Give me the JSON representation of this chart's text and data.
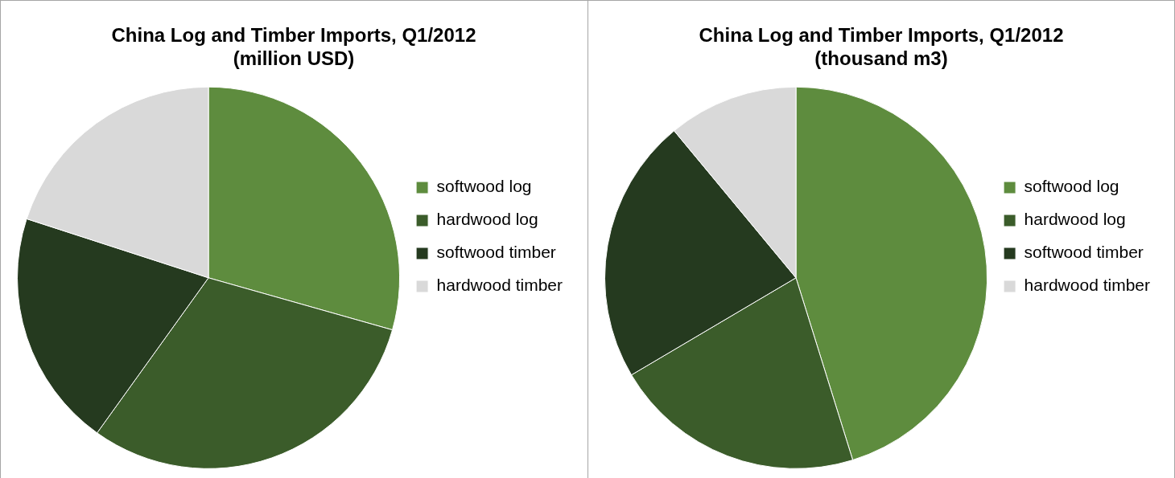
{
  "chart_data": [
    {
      "type": "pie",
      "title": "China Log and Timber Imports, Q1/2012\n(million USD)",
      "categories": [
        "softwood log",
        "hardwood log",
        "softwood timber",
        "hardwood timber"
      ],
      "values": [
        29.4,
        30.5,
        20.1,
        20.0
      ],
      "colors": [
        "#5e8c3e",
        "#3b5c2a",
        "#253a1f",
        "#d9d9d9"
      ],
      "legend": "right"
    },
    {
      "type": "pie",
      "title": "China Log and Timber Imports, Q1/2012\n(thousand m3)",
      "categories": [
        "softwood log",
        "hardwood log",
        "softwood timber",
        "hardwood timber"
      ],
      "values": [
        45.2,
        21.3,
        22.5,
        11.0
      ],
      "colors": [
        "#5e8c3e",
        "#3b5c2a",
        "#253a1f",
        "#d9d9d9"
      ],
      "legend": "right"
    }
  ]
}
